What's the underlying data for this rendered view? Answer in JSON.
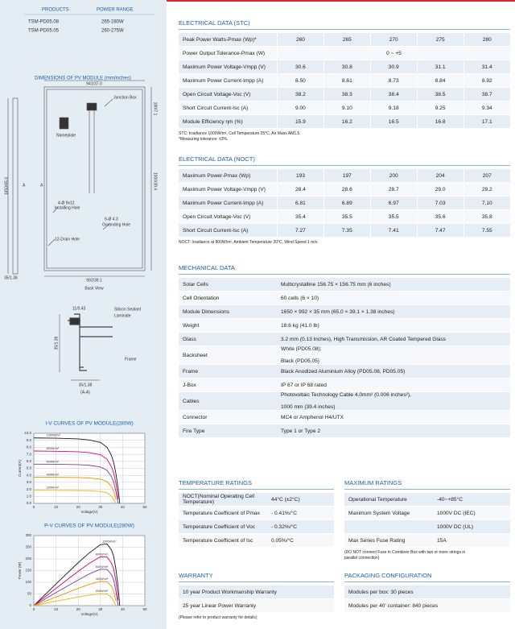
{
  "products": {
    "headers": [
      "PRODUCTS",
      "POWER RANGE"
    ],
    "rows": [
      [
        "TSM-PD05.08",
        "265-280W"
      ],
      [
        "TSM-PD05.05",
        "260-275W"
      ]
    ]
  },
  "dimensions": {
    "title": "DIMENSIONS OF PV MODULE (mm/inches)",
    "labels": [
      "941/37.0",
      "Junction Box",
      "Nameplate",
      "4-Ø 9x12",
      "Installing Hole",
      "6-Ø 4.3",
      "Grounding Hole",
      "12-Drain Hole",
      "1650/65.0",
      "35/1.38",
      "992/39.1",
      "Back View",
      "180/7.1",
      "1000/39.4",
      "A",
      "A"
    ],
    "section_labels": [
      "11/0.43",
      "Silicon Sealant",
      "Laminate",
      "35/1.38",
      "Frame",
      "35/1.38",
      "(A-A)"
    ]
  },
  "chart_data": [
    {
      "type": "line",
      "title": "I-V CURVES OF PV MODULE(280W)",
      "x_label": "Voltage(V)",
      "y_label": "Current(A)",
      "x": [
        0,
        10,
        20,
        25,
        30,
        33,
        35,
        36,
        37,
        38,
        38.7
      ],
      "series": [
        {
          "name": "1000W/m²",
          "color": "#1a1a1a",
          "values": [
            9.34,
            9.3,
            9.2,
            9.05,
            8.7,
            8.0,
            6.8,
            5.8,
            4.2,
            2.0,
            0
          ]
        },
        {
          "name": "800W/m²",
          "color": "#e0007a",
          "values": [
            7.47,
            7.44,
            7.36,
            7.24,
            6.95,
            6.3,
            5.2,
            4.3,
            2.8,
            0.6,
            null
          ]
        },
        {
          "name": "600W/m²",
          "color": "#7b3fa0",
          "values": [
            5.6,
            5.58,
            5.52,
            5.43,
            5.2,
            4.7,
            3.8,
            3.0,
            1.6,
            0,
            null
          ]
        },
        {
          "name": "400W/m²",
          "color": "#f39200",
          "values": [
            3.74,
            3.72,
            3.68,
            3.62,
            3.45,
            3.1,
            2.4,
            1.7,
            0.5,
            null,
            null
          ]
        },
        {
          "name": "200W/m²",
          "color": "#e8b800",
          "values": [
            1.87,
            1.86,
            1.84,
            1.8,
            1.7,
            1.5,
            1.0,
            0.5,
            0,
            null,
            null
          ]
        }
      ],
      "xlim": [
        0,
        50
      ],
      "ylim": [
        0,
        10
      ],
      "xticks": [
        0,
        10,
        20,
        30,
        40,
        50
      ],
      "yticks": [
        {
          "value": 0,
          "label": "0.0"
        },
        {
          "value": 1,
          "label": "1.0"
        },
        {
          "value": 2,
          "label": "2.0"
        },
        {
          "value": 3,
          "label": "3.0"
        },
        {
          "value": 4,
          "label": "4.0"
        },
        {
          "value": 5,
          "label": "5.0"
        },
        {
          "value": 6,
          "label": "6.0"
        },
        {
          "value": 7,
          "label": "7.0"
        },
        {
          "value": 8,
          "label": "8.0"
        },
        {
          "value": 9,
          "label": "9.0"
        },
        {
          "value": 10,
          "label": "10.0"
        }
      ],
      "grid": true
    },
    {
      "type": "line",
      "title": "P-V CURVES OF PV MODULE(280W)",
      "x_label": "Voltage(V)",
      "y_label": "Power (W)",
      "x": [
        0,
        10,
        20,
        25,
        30,
        33,
        35,
        36,
        37,
        38,
        38.7
      ],
      "series": [
        {
          "name": "1000W/m²",
          "color": "#1a1a1a",
          "values": [
            0,
            93,
            184,
            226,
            261,
            264,
            238,
            209,
            155,
            76,
            0
          ]
        },
        {
          "name": "800W/m²",
          "color": "#e0007a",
          "values": [
            0,
            74,
            147,
            181,
            209,
            208,
            182,
            155,
            104,
            23,
            null
          ]
        },
        {
          "name": "600W/m²",
          "color": "#7b3fa0",
          "values": [
            0,
            56,
            110,
            136,
            156,
            155,
            133,
            108,
            59,
            0,
            null
          ]
        },
        {
          "name": "400W/m²",
          "color": "#f39200",
          "values": [
            0,
            37,
            74,
            91,
            104,
            102,
            84,
            61,
            19,
            null,
            null
          ]
        },
        {
          "name": "200W/m²",
          "color": "#e8b800",
          "values": [
            0,
            19,
            37,
            45,
            51,
            50,
            35,
            18,
            0,
            null,
            null
          ]
        }
      ],
      "xlim": [
        0,
        50
      ],
      "ylim": [
        0,
        300
      ],
      "xticks": [
        0,
        10,
        20,
        30,
        40,
        50
      ],
      "yticks": [
        0,
        50,
        100,
        150,
        200,
        250,
        300
      ],
      "grid": true
    }
  ],
  "stc": {
    "title": "ELECTRICAL DATA (STC)",
    "rows": [
      {
        "label": "Peak Power Watts-Pmax (Wp)*",
        "values": [
          "260",
          "265",
          "270",
          "275",
          "280"
        ]
      },
      {
        "label": "Power Output Tolerance-Pmax (W)",
        "value": "0 ~ +5"
      },
      {
        "label": "Maximum Power Voltage-Vmpp (V)",
        "values": [
          "30.6",
          "30.8",
          "30.9",
          "31.1",
          "31.4"
        ]
      },
      {
        "label": "Maximum Power Current-Impp (A)",
        "values": [
          "8.50",
          "8.61",
          "8.73",
          "8.84",
          "8.92"
        ]
      },
      {
        "label": "Open Circuit Voltage-Voc (V)",
        "values": [
          "38.2",
          "38.3",
          "38.4",
          "38.5",
          "38.7"
        ]
      },
      {
        "label": "Short Circuit Current-Isc (A)",
        "values": [
          "9.00",
          "9.10",
          "9.18",
          "9.25",
          "9.34"
        ]
      },
      {
        "label": "Module Efficiency ηm (%)",
        "values": [
          "15.9",
          "16.2",
          "16.5",
          "16.8",
          "17.1"
        ]
      }
    ],
    "notes": [
      "STC: Irradiance 1000W/m², Cell Temperature 25°C, Air Mass AM1.5.",
      "*Measuring tolerance: ±3%."
    ]
  },
  "noct": {
    "title": "ELECTRICAL DATA (NOCT)",
    "rows": [
      {
        "label": "Maximum Power-Pmax (Wp)",
        "values": [
          "193",
          "197",
          "200",
          "204",
          "207"
        ]
      },
      {
        "label": "Maximum Power Voltage-Vmpp (V)",
        "values": [
          "28.4",
          "28.6",
          "28.7",
          "29.0",
          "29.2"
        ]
      },
      {
        "label": "Maximum Power Current-Impp (A)",
        "values": [
          "6.81",
          "6.89",
          "6.97",
          "7.03",
          "7.10"
        ]
      },
      {
        "label": "Open Circuit Voltage-Voc (V)",
        "values": [
          "35.4",
          "35.5",
          "35.5",
          "35.6",
          "35.8"
        ]
      },
      {
        "label": "Short Circuit Current-Isc (A)",
        "values": [
          "7.27",
          "7.35",
          "7.41",
          "7.47",
          "7.55"
        ]
      }
    ],
    "notes": [
      "NOCT: Irradiance at 800W/m², Ambient Temperature 20°C, Wind Speed 1 m/s."
    ]
  },
  "mechanical": {
    "title": "MECHANICAL DATA",
    "rows": [
      {
        "label": "Solar Cells",
        "value": [
          "Multicrystalline 156.75 × 156.75 mm (6 inches)"
        ]
      },
      {
        "label": "Cell Orientation",
        "value": [
          "60 cells (6 × 10)"
        ]
      },
      {
        "label": "Module Dimensions",
        "value": [
          "1650 × 992 × 35 mm (65.0 × 39.1 × 1.38 inches)"
        ]
      },
      {
        "label": "Weight",
        "value": [
          "18.6 kg (41.0 lb)"
        ]
      },
      {
        "label": "Glass",
        "value": [
          "3.2 mm (0.13 inches), High Transmission, AR Coated Tempered Glass"
        ]
      },
      {
        "label": "Backsheet",
        "value": [
          "White (PD05.08);",
          "Black (PD05.05)"
        ]
      },
      {
        "label": "Frame",
        "value": [
          "Black  Anodized Aluminium Alloy (PD05.08, PD05.05)"
        ]
      },
      {
        "label": "J-Box",
        "value": [
          "IP 67 or IP 68 rated"
        ]
      },
      {
        "label": "Cables",
        "value": [
          "Photovoltaic Technology Cable 4.0mm² (0.006 inches²),",
          "1000 mm (39.4 inches)"
        ]
      },
      {
        "label": "Connector",
        "value": [
          "MC4 or Amphenol H4/UTX"
        ]
      },
      {
        "label": "Fire Type",
        "value": [
          "Type 1 or Type 2"
        ]
      }
    ]
  },
  "temperature": {
    "title": "TEMPERATURE RATINGS",
    "rows": [
      {
        "label": "NOCT(Nominal Operating Cell Temperature)",
        "value": "44°C (±2°C)"
      },
      {
        "label": "Temperature Coefficient of Pmax",
        "value": "- 0.41%/°C"
      },
      {
        "label": "Temperature Coefficient of Voc",
        "value": "- 0.32%/°C"
      },
      {
        "label": "Temperature Coefficient of Isc",
        "value": "0.05%/°C"
      }
    ]
  },
  "maximum": {
    "title": "MAXIMUM RATINGS",
    "rows": [
      {
        "label": "Operational Temperature",
        "value": "-40~+85°C"
      },
      {
        "label": "Maximum System Voltage",
        "value": "1000V DC (IEC)"
      },
      {
        "label": "",
        "value": "1000V DC (UL)"
      },
      {
        "label": "Max Series Fuse Rating",
        "value": "15A"
      }
    ],
    "notes": [
      "(DO NOT connect Fuse in Combiner Box with two or more strings in",
      "parallel connection)"
    ]
  },
  "warranty": {
    "title": "WARRANTY",
    "rows": [
      "10 year Product Workmanship Warranty",
      "25 year Linear Power Warranty"
    ],
    "notes": [
      "(Please refer to product warranty for details)"
    ]
  },
  "packaging": {
    "title": "PACKAGING CONFIGURATION",
    "rows": [
      "Modules per box: 30 pieces",
      "Modules per 40' container: 840 pieces"
    ]
  }
}
